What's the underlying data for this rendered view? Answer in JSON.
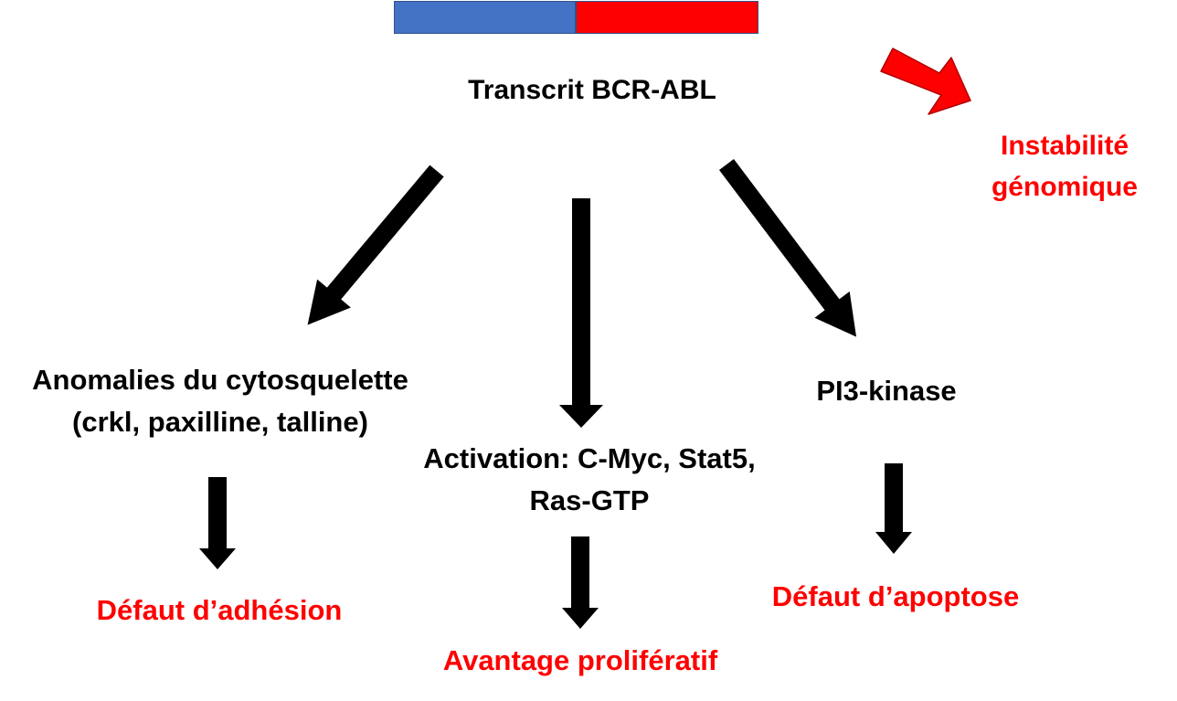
{
  "colors": {
    "bcr_segment": "#4472c4",
    "abl_segment": "#ff0000",
    "arrow_black": "#000000",
    "arrow_red": "#ff0000",
    "text_black": "#000000",
    "text_red": "#ff0000"
  },
  "transcript": {
    "label": "Transcrit BCR-ABL"
  },
  "genomic_instability": {
    "line1": "Instabilité",
    "line2": "génomique"
  },
  "left_branch": {
    "line1": "Anomalies du cytosquelette",
    "line2": "(crkl, paxilline, talline)",
    "outcome": "Défaut d’adhésion"
  },
  "middle_branch": {
    "line1": "Activation: C-Myc, Stat5,",
    "line2": "Ras-GTP",
    "outcome": "Avantage prolifératif"
  },
  "right_branch": {
    "line1": "PI3-kinase",
    "outcome": "Défaut d’apoptose"
  }
}
